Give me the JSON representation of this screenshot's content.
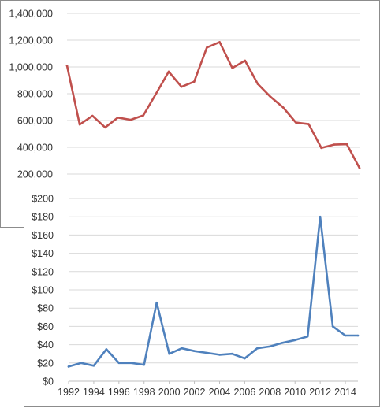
{
  "chart_data": [
    {
      "type": "line",
      "x": [
        1992,
        1993,
        1994,
        1995,
        1996,
        1997,
        1998,
        1999,
        2000,
        2001,
        2002,
        2003,
        2004,
        2005,
        2006,
        2007,
        2008,
        2009,
        2010,
        2011,
        2012,
        2013,
        2014,
        2015
      ],
      "series": [
        {
          "color": "#c0504d",
          "values": [
            1010000,
            570000,
            635000,
            548000,
            622000,
            605000,
            638000,
            800000,
            965000,
            852000,
            890000,
            1145000,
            1186000,
            992000,
            1047000,
            873000,
            777000,
            697000,
            585000,
            573000,
            395000,
            420000,
            423000,
            245000
          ]
        }
      ],
      "ylim": [
        200000,
        1400000
      ],
      "yticks": [
        "1,400,000",
        "1,200,000",
        "1,000,000",
        "800,000",
        "600,000",
        "400,000",
        "200,000"
      ],
      "grid": true
    },
    {
      "type": "line",
      "x": [
        1992,
        1993,
        1994,
        1995,
        1996,
        1997,
        1998,
        1999,
        2000,
        2001,
        2002,
        2003,
        2004,
        2005,
        2006,
        2007,
        2008,
        2009,
        2010,
        2011,
        2012,
        2013,
        2014,
        2015
      ],
      "series": [
        {
          "color": "#4f81bd",
          "values": [
            16,
            20,
            17,
            35,
            20,
            20,
            18,
            86,
            30,
            36,
            33,
            31,
            29,
            30,
            25,
            36,
            38,
            42,
            45,
            49,
            180,
            60,
            50,
            50
          ]
        }
      ],
      "ylim": [
        0,
        200
      ],
      "yticks": [
        "$200",
        "$180",
        "$160",
        "$140",
        "$120",
        "$100",
        "$80",
        "$60",
        "$40",
        "$20",
        "$0"
      ],
      "xticks": [
        "1992",
        "1994",
        "1996",
        "1998",
        "2000",
        "2002",
        "2004",
        "2006",
        "2008",
        "2010",
        "2012",
        "2014"
      ],
      "grid": true
    }
  ]
}
